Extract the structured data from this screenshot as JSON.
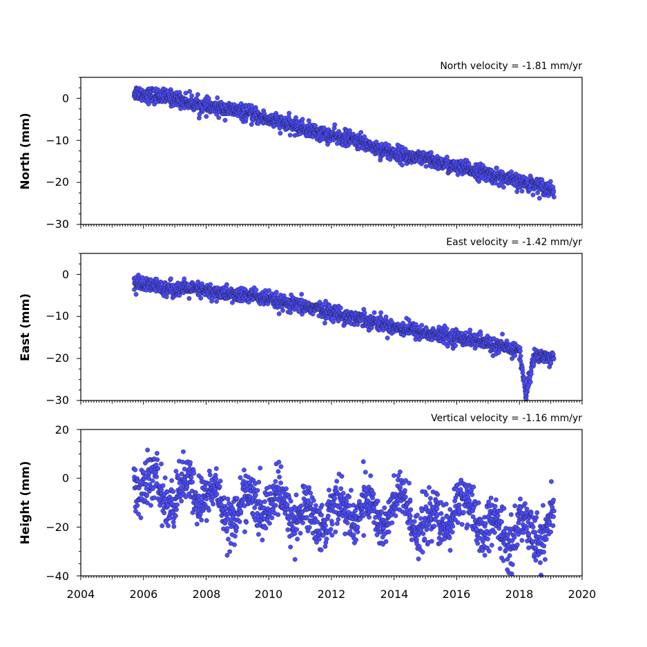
{
  "chart_data": [
    {
      "type": "scatter",
      "title": "North velocity = -1.81 mm/yr",
      "ylabel": "North (mm)",
      "xlim": [
        2004,
        2020
      ],
      "ylim": [
        -30,
        5
      ],
      "yticks": [
        0,
        -10,
        -20,
        -30
      ],
      "ytick_labels": [
        "0",
        "−10",
        "−20",
        "−30"
      ],
      "x_range": [
        2005.7,
        2019.1
      ],
      "trend": {
        "start": [
          2005.7,
          1.5
        ],
        "end": [
          2019.1,
          -21.5
        ]
      },
      "color": "#4b4bff",
      "series": [
        {
          "x": [
            2005.7,
            2006.0,
            2006.5,
            2007.0,
            2007.5,
            2008.0,
            2008.5,
            2009.0,
            2009.5,
            2010.0,
            2010.5,
            2011.0,
            2011.5,
            2012.0,
            2012.5,
            2013.0,
            2013.5,
            2014.0,
            2014.5,
            2015.0,
            2015.5,
            2016.0,
            2016.5,
            2017.0,
            2017.5,
            2018.0,
            2018.5,
            2019.0,
            2019.1
          ],
          "y": [
            1.5,
            1.0,
            0.5,
            0.0,
            -1.0,
            -2.0,
            -2.5,
            -3.0,
            -4.0,
            -5.0,
            -6.0,
            -7.0,
            -8.0,
            -9.0,
            -9.5,
            -10.5,
            -12.0,
            -13.0,
            -14.0,
            -14.5,
            -15.5,
            -16.5,
            -17.0,
            -18.0,
            -19.0,
            -20.0,
            -20.5,
            -21.5,
            -22.0
          ]
        }
      ]
    },
    {
      "type": "scatter",
      "title": "East velocity = -1.42 mm/yr",
      "ylabel": "East (mm)",
      "xlim": [
        2004,
        2020
      ],
      "ylim": [
        -30,
        5
      ],
      "yticks": [
        0,
        -10,
        -20,
        -30
      ],
      "ytick_labels": [
        "0",
        "−10",
        "−20",
        "−30"
      ],
      "x_range": [
        2005.7,
        2019.1
      ],
      "trend": {
        "start": [
          2005.7,
          -2.0
        ],
        "end": [
          2019.1,
          -20.0
        ]
      },
      "color": "#4b4bff",
      "series": [
        {
          "x": [
            2005.7,
            2006.0,
            2006.5,
            2007.0,
            2007.5,
            2008.0,
            2008.5,
            2009.0,
            2009.5,
            2010.0,
            2010.5,
            2011.0,
            2011.5,
            2012.0,
            2012.5,
            2013.0,
            2013.5,
            2014.0,
            2014.5,
            2015.0,
            2015.5,
            2016.0,
            2016.5,
            2017.0,
            2017.5,
            2018.0,
            2018.2,
            2018.5,
            2019.0
          ],
          "y": [
            -2.0,
            -2.5,
            -3.0,
            -3.5,
            -3.5,
            -4.0,
            -4.5,
            -5.0,
            -5.0,
            -6.0,
            -7.0,
            -7.5,
            -8.0,
            -9.0,
            -10.0,
            -10.5,
            -11.5,
            -12.5,
            -13.0,
            -14.0,
            -14.5,
            -15.0,
            -15.5,
            -16.5,
            -17.5,
            -18.0,
            -28.5,
            -19.0,
            -20.0
          ]
        }
      ]
    },
    {
      "type": "scatter",
      "title": "Vertical velocity = -1.16 mm/yr",
      "ylabel": "Height (mm)",
      "xlabel": "",
      "xlim": [
        2004,
        2020
      ],
      "ylim": [
        -40,
        20
      ],
      "yticks": [
        20,
        0,
        -20,
        -40
      ],
      "ytick_labels": [
        "20",
        "0",
        "−20",
        "−40"
      ],
      "xticks": [
        2004,
        2006,
        2008,
        2010,
        2012,
        2014,
        2016,
        2018,
        2020
      ],
      "xtick_labels": [
        "2004",
        "2006",
        "2008",
        "2010",
        "2012",
        "2014",
        "2016",
        "2018",
        "2020"
      ],
      "x_range": [
        2005.7,
        2019.1
      ],
      "trend": {
        "start": [
          2005.7,
          -3.0
        ],
        "end": [
          2019.1,
          -18.0
        ]
      },
      "color": "#4b4bff",
      "series": [
        {
          "x": [
            2005.7,
            2006.0,
            2006.5,
            2007.0,
            2007.5,
            2008.0,
            2008.5,
            2009.0,
            2009.5,
            2010.0,
            2010.5,
            2011.0,
            2011.5,
            2012.0,
            2012.5,
            2013.0,
            2013.5,
            2014.0,
            2014.5,
            2015.0,
            2015.5,
            2016.0,
            2016.5,
            2017.0,
            2017.5,
            2018.0,
            2018.5,
            2019.0
          ],
          "y": [
            3.0,
            -5.0,
            -3.0,
            -10.0,
            -2.0,
            -8.0,
            -10.0,
            -15.0,
            -8.0,
            -12.0,
            -10.0,
            -15.0,
            -18.0,
            -12.0,
            -15.0,
            -10.0,
            -18.0,
            -10.0,
            -15.0,
            -18.0,
            -20.0,
            -10.0,
            -15.0,
            -20.0,
            -25.0,
            -18.0,
            -25.0,
            -15.0
          ]
        }
      ]
    }
  ]
}
